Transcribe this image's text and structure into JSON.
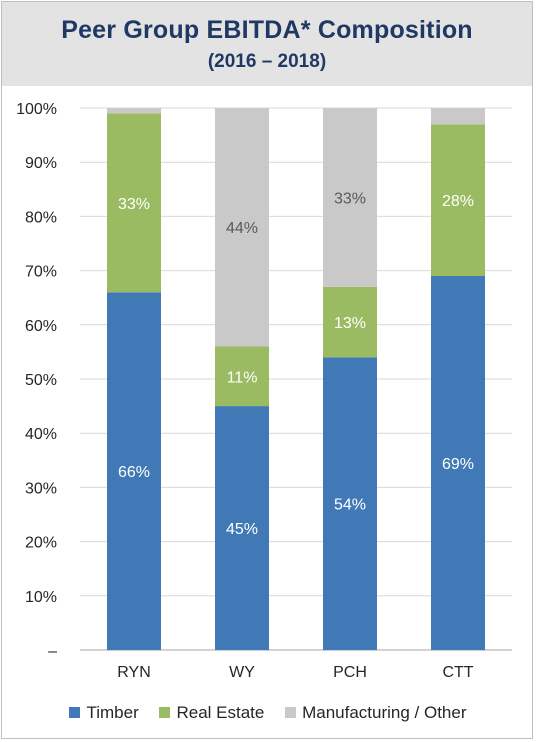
{
  "header": {
    "title": "Peer Group EBITDA* Composition",
    "subtitle": "(2016 – 2018)"
  },
  "colors": {
    "timber": "#4179b6",
    "real_estate": "#9bbb63",
    "other": "#c9c9c9",
    "title": "#1f3864"
  },
  "chart_data": {
    "type": "bar",
    "stacked": true,
    "categories": [
      "RYN",
      "WY",
      "PCH",
      "CTT"
    ],
    "series": [
      {
        "name": "Timber",
        "values": [
          66,
          45,
          54,
          69
        ],
        "labels": [
          "66%",
          "45%",
          "54%",
          "69%"
        ]
      },
      {
        "name": "Real Estate",
        "values": [
          33,
          11,
          13,
          28
        ],
        "labels": [
          "33%",
          "11%",
          "13%",
          "28%"
        ]
      },
      {
        "name": "Manufacturing / Other",
        "values": [
          1,
          44,
          33,
          3
        ],
        "labels": [
          "",
          "44%",
          "33%",
          ""
        ]
      }
    ],
    "ylim": [
      0,
      100
    ],
    "y_ticks": [
      "–",
      "10%",
      "20%",
      "30%",
      "40%",
      "50%",
      "60%",
      "70%",
      "80%",
      "90%",
      "100%"
    ],
    "grid": true,
    "legend_position": "bottom"
  }
}
